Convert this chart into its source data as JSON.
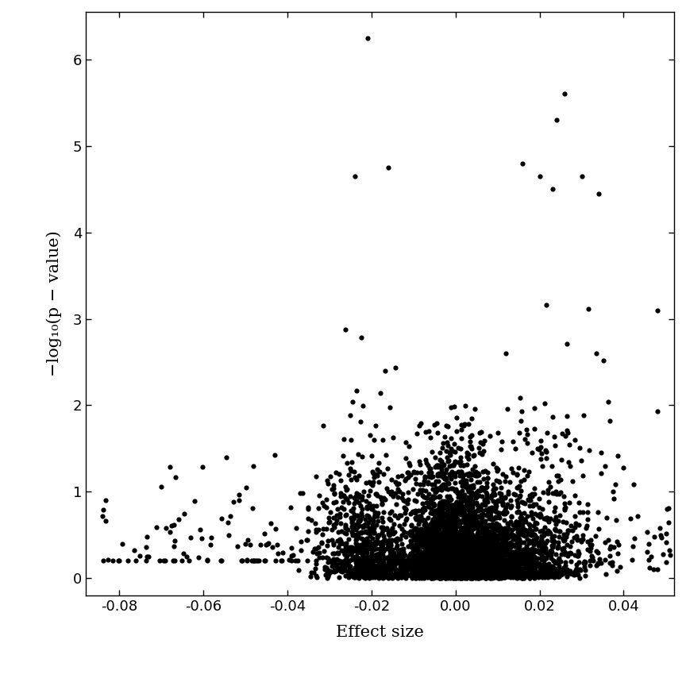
{
  "title": "",
  "xlabel": "Effect size",
  "ylabel": "−log₁₀(p − value)",
  "xlim": [
    -0.088,
    0.052
  ],
  "ylim": [
    -0.2,
    6.55
  ],
  "xticks": [
    -0.08,
    -0.06,
    -0.04,
    -0.02,
    0.0,
    0.02,
    0.04
  ],
  "yticks": [
    0,
    1,
    2,
    3,
    4,
    5,
    6
  ],
  "point_color": "#000000",
  "point_size": 20,
  "background_color": "#ffffff",
  "seed": 42
}
